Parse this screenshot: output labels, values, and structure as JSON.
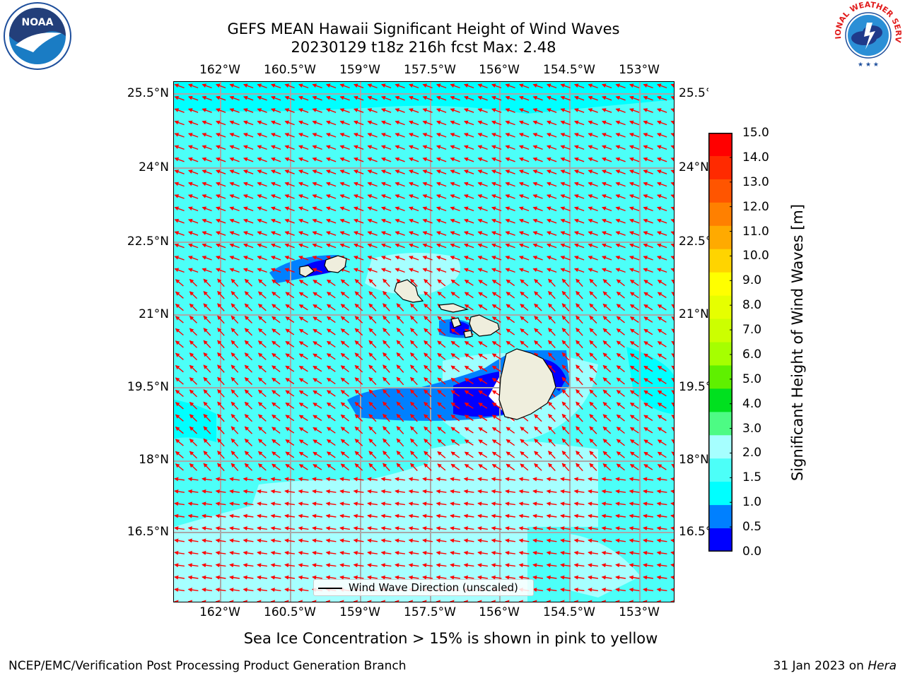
{
  "title_line1": "GEFS MEAN Hawaii Significant Height of Wind Waves",
  "title_line2": "20230129 t18z 216h fcst   Max: 2.48",
  "lon_labels": [
    "162°W",
    "160.5°W",
    "159°W",
    "157.5°W",
    "156°W",
    "154.5°W",
    "153°W"
  ],
  "lat_labels": [
    "25.5°N",
    "24°N",
    "22.5°N",
    "21°N",
    "19.5°N",
    "18°N",
    "16.5°N"
  ],
  "colorbar": {
    "label": "Significant Height of Wind Waves [m]",
    "ticks": [
      "15.0",
      "14.0",
      "13.0",
      "12.0",
      "11.0",
      "10.0",
      "9.0",
      "8.0",
      "7.0",
      "6.0",
      "5.0",
      "4.0",
      "3.0",
      "2.0",
      "1.5",
      "1.0",
      "0.5",
      "0.0"
    ],
    "colors": [
      "#ff0000",
      "#ff2a00",
      "#ff5500",
      "#ff8000",
      "#ffaa00",
      "#ffd400",
      "#ffff00",
      "#e6ff00",
      "#ccff00",
      "#a6ff00",
      "#5ff000",
      "#00e01f",
      "#4dfb84",
      "#a6ffff",
      "#4cfff8",
      "#00ffff",
      "#0080ff",
      "#0000ff"
    ]
  },
  "legend": {
    "label": "Wind Wave Direction (unscaled)"
  },
  "footnote": "Sea Ice Concentration > 15% is shown in pink to yellow",
  "credit": "NCEP/EMC/Verification Post Processing Product Generation Branch",
  "date": {
    "text": "31 Jan 2023 on ",
    "system": "Hera"
  },
  "logos": {
    "left": "NOAA",
    "right": "NATIONAL WEATHER SERVICE"
  },
  "map_colors": {
    "land": "#efeedd",
    "arrow": "#ff0000",
    "grid": "#a8a8a8"
  }
}
